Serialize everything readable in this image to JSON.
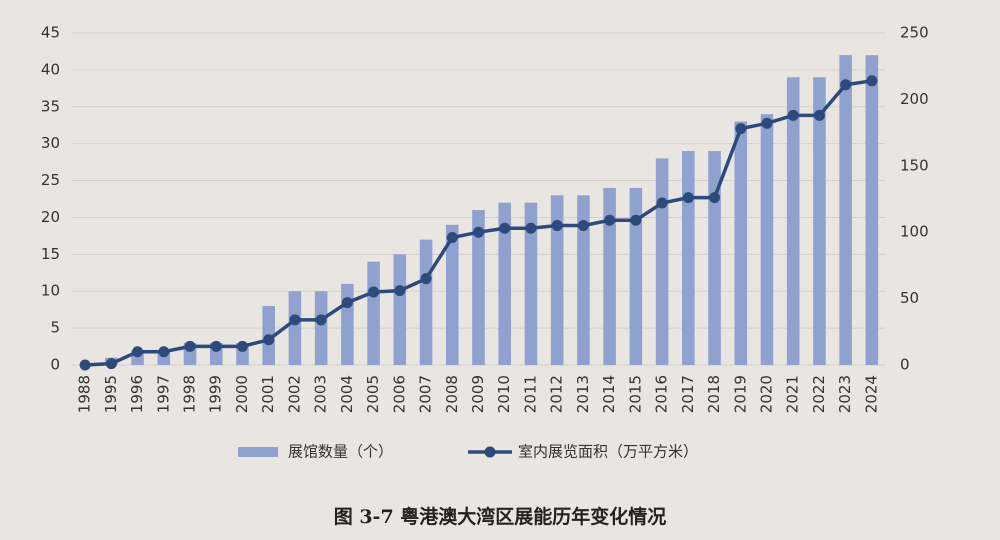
{
  "chart_data": {
    "type": "bar",
    "caption": "图 3-7 粤港澳大湾区展能历年变化情况",
    "categories": [
      "1988",
      "1995",
      "1996",
      "1997",
      "1998",
      "1999",
      "2000",
      "2001",
      "2002",
      "2003",
      "2004",
      "2005",
      "2006",
      "2007",
      "2008",
      "2009",
      "2010",
      "2011",
      "2012",
      "2013",
      "2014",
      "2015",
      "2016",
      "2017",
      "2018",
      "2019",
      "2020",
      "2021",
      "2022",
      "2023",
      "2024"
    ],
    "series": [
      {
        "name": "展馆数量（个）",
        "type": "bar",
        "color": "#8fa2cf",
        "values": [
          0,
          1,
          2,
          2,
          3,
          3,
          3,
          8,
          10,
          10,
          11,
          14,
          15,
          17,
          19,
          21,
          22,
          22,
          23,
          23,
          24,
          24,
          28,
          29,
          29,
          33,
          34,
          39,
          39,
          42,
          42
        ]
      },
      {
        "name": "室内展览面积（万平方米）",
        "type": "line",
        "axis": "y2",
        "color": "#2c4a7c",
        "values": [
          0,
          1,
          10,
          10,
          14,
          14,
          14,
          19,
          34,
          34,
          47,
          55,
          56,
          65,
          96,
          100,
          103,
          103,
          105,
          105,
          109,
          109,
          122,
          126,
          126,
          178,
          182,
          188,
          188,
          211,
          214
        ]
      }
    ],
    "ylim": [
      0,
      45
    ],
    "yticks": [
      0,
      5,
      10,
      15,
      20,
      25,
      30,
      35,
      40,
      45
    ],
    "y2lim": [
      0,
      250
    ],
    "y2ticks": [
      0,
      50,
      100,
      150,
      200,
      250
    ],
    "grid": true
  }
}
